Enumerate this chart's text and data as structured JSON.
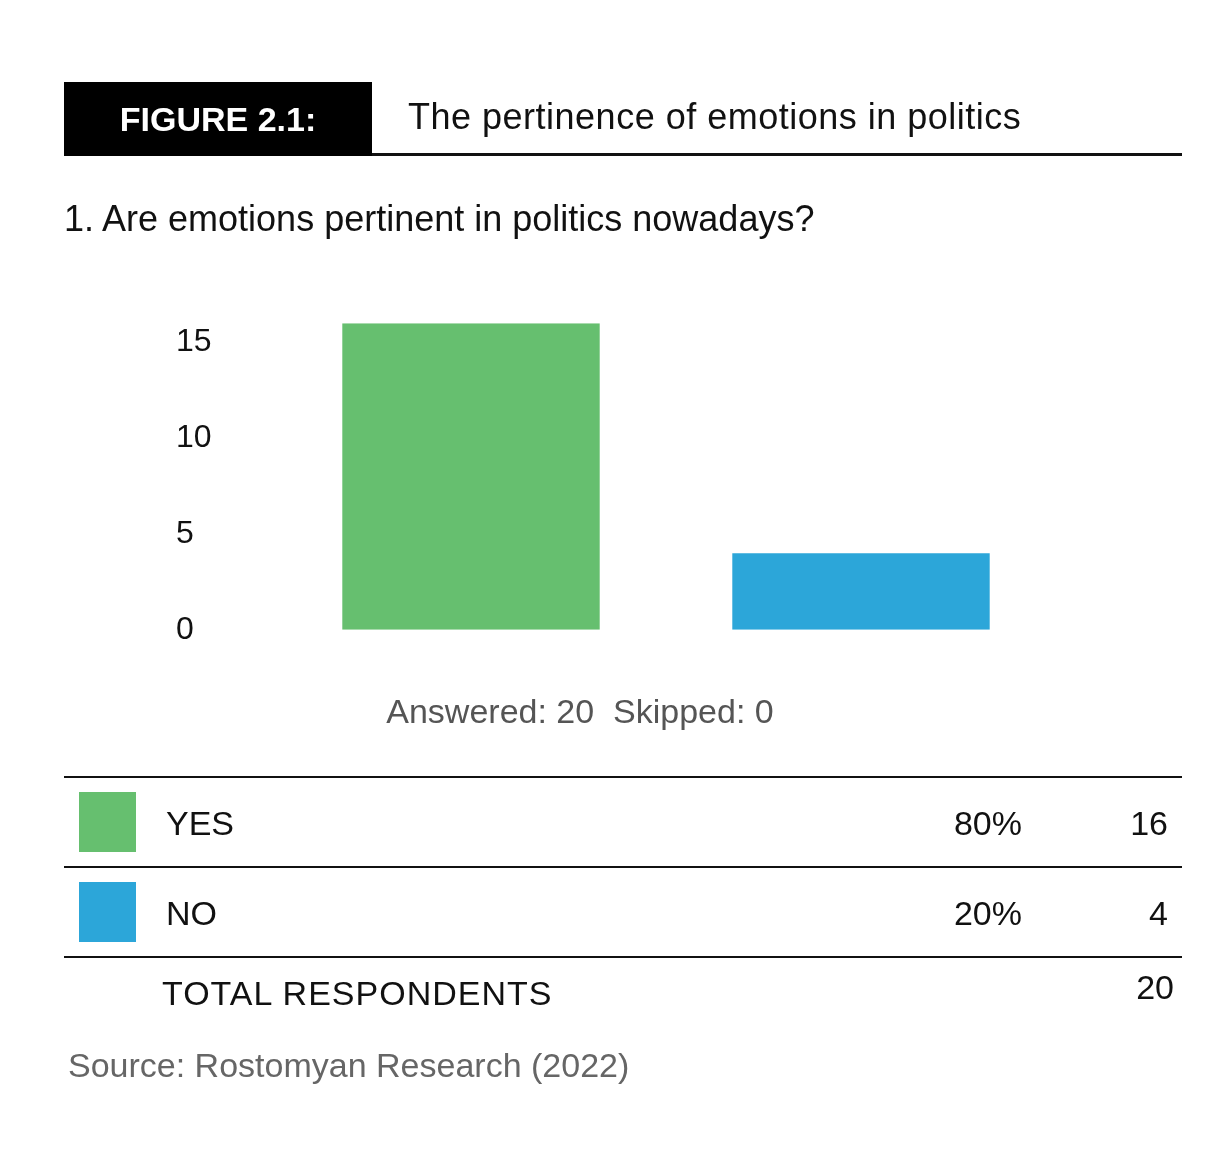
{
  "chart_data": {
    "type": "bar",
    "title": "FIGURE 2.1:",
    "subtitle": "The pertinence of emotions in politics",
    "categories": [
      null,
      null
    ],
    "values": [
      16,
      4
    ],
    "colors": [
      "#66bf6f",
      "#2ca6d9"
    ],
    "ylim": [
      0,
      16
    ],
    "yticks": [
      0,
      5,
      10,
      15
    ],
    "tick_labels": "y",
    "annotations": [
      "1. Are emotions pertinent in politics nowadays?",
      "Answered: 20  Skipped: 0",
      "YES",
      "80%",
      "16",
      "NO",
      "20%",
      "4",
      "TOTAL RESPONDENTS",
      "20",
      "Source: Rostomyan Research (2022)"
    ]
  }
}
